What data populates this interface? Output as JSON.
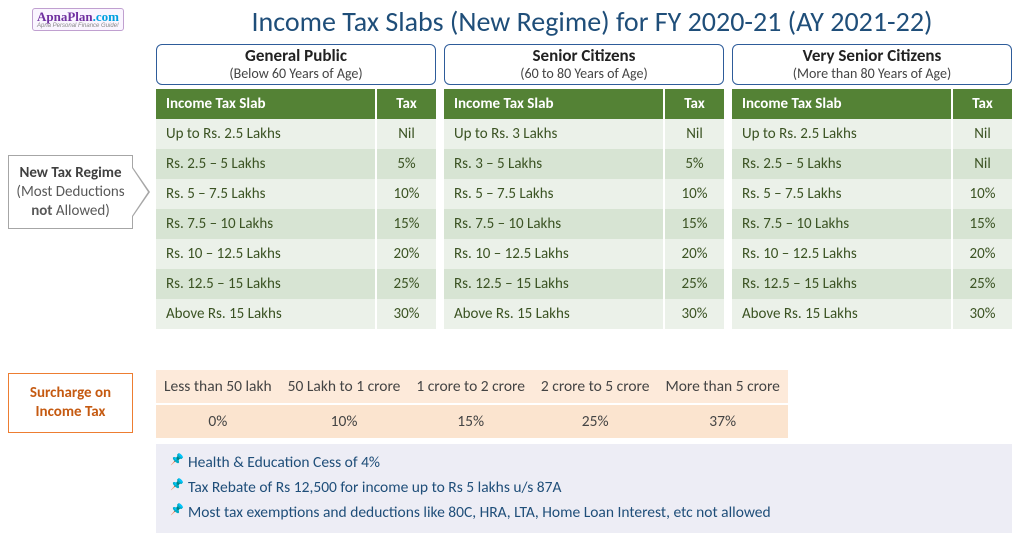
{
  "brand": {
    "name": "ApnaPlan",
    "ext": ".com",
    "tagline": "Apna Personal Finance Guide!"
  },
  "title": "Income Tax Slabs (New Regime) for FY 2020-21 (AY 2021-22)",
  "sidebar": {
    "regime_head": "New Tax Regime",
    "regime_sub1": "(Most Deductions",
    "regime_sub2_strong": "not",
    "regime_sub2_rest": " Allowed)",
    "surcharge": "Surcharge on Income Tax"
  },
  "columns_header": {
    "slab": "Income Tax Slab",
    "tax": "Tax"
  },
  "categories": [
    {
      "title": "General Public",
      "subtitle": "(Below 60 Years of Age)",
      "rows": [
        {
          "slab": "Up to Rs. 2.5 Lakhs",
          "tax": "Nil"
        },
        {
          "slab": "Rs. 2.5 – 5 Lakhs",
          "tax": "5%"
        },
        {
          "slab": "Rs. 5 – 7.5 Lakhs",
          "tax": "10%"
        },
        {
          "slab": "Rs. 7.5 – 10 Lakhs",
          "tax": "15%"
        },
        {
          "slab": "Rs. 10 – 12.5 Lakhs",
          "tax": "20%"
        },
        {
          "slab": "Rs. 12.5 – 15 Lakhs",
          "tax": "25%"
        },
        {
          "slab": "Above Rs. 15 Lakhs",
          "tax": "30%"
        }
      ]
    },
    {
      "title": "Senior Citizens",
      "subtitle": "(60 to 80 Years of Age)",
      "rows": [
        {
          "slab": "Up to Rs. 3 Lakhs",
          "tax": "Nil"
        },
        {
          "slab": "Rs. 3 – 5 Lakhs",
          "tax": "5%"
        },
        {
          "slab": "Rs. 5 – 7.5 Lakhs",
          "tax": "10%"
        },
        {
          "slab": "Rs. 7.5 – 10 Lakhs",
          "tax": "15%"
        },
        {
          "slab": "Rs. 10 – 12.5 Lakhs",
          "tax": "20%"
        },
        {
          "slab": "Rs. 12.5 – 15 Lakhs",
          "tax": "25%"
        },
        {
          "slab": "Above Rs. 15 Lakhs",
          "tax": "30%"
        }
      ]
    },
    {
      "title": "Very Senior Citizens",
      "subtitle": "(More than 80 Years of Age)",
      "rows": [
        {
          "slab": "Up to Rs. 2.5 Lakhs",
          "tax": "Nil"
        },
        {
          "slab": "Rs. 2.5 – 5 Lakhs",
          "tax": "Nil"
        },
        {
          "slab": "Rs. 5 – 7.5 Lakhs",
          "tax": "10%"
        },
        {
          "slab": "Rs. 7.5 – 10 Lakhs",
          "tax": "15%"
        },
        {
          "slab": "Rs. 10 – 12.5 Lakhs",
          "tax": "20%"
        },
        {
          "slab": "Rs. 12.5 – 15 Lakhs",
          "tax": "25%"
        },
        {
          "slab": "Above Rs. 15 Lakhs",
          "tax": "30%"
        }
      ]
    }
  ],
  "surcharge": {
    "brackets": [
      "Less than 50 lakh",
      "50 Lakh to 1 crore",
      "1 crore to 2 crore",
      "2 crore to 5 crore",
      "More than 5 crore"
    ],
    "rates": [
      "0%",
      "10%",
      "15%",
      "25%",
      "37%"
    ]
  },
  "notes": [
    "Health & Education Cess of 4%",
    "Tax Rebate of Rs 12,500 for income up to Rs 5 lakhs u/s 87A",
    "Most tax exemptions and deductions like 80C, HRA, LTA, Home Loan Interest, etc not allowed"
  ],
  "style": {
    "title_color": "#1f4e79",
    "table_header_bg": "#548235",
    "row_even_bg": "#ebf1e9",
    "row_odd_bg": "#d7e4d3",
    "surcharge_bg1": "#fdeada",
    "surcharge_bg2": "#fbe4cf",
    "notes_bg": "#ededf5",
    "accent_orange": "#c55a11",
    "category_border": "#2e5c9a"
  }
}
